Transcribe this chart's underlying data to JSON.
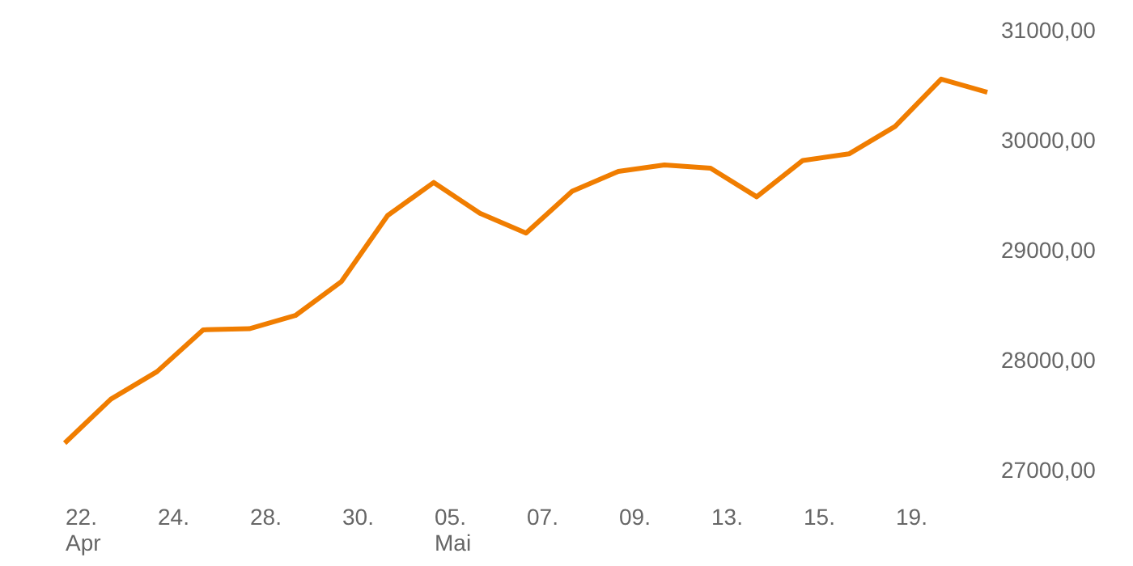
{
  "chart_data": {
    "type": "line",
    "categories": [
      "22.\nApr",
      null,
      "24.",
      null,
      "28.",
      null,
      "30.",
      null,
      "05.\nMai",
      null,
      "07.",
      null,
      "09.",
      null,
      "13.",
      null,
      "15.",
      null,
      "19.",
      null,
      null
    ],
    "series": [
      {
        "color": "#f07d00",
        "values": [
          27250,
          27650,
          27900,
          28280,
          28290,
          28410,
          28720,
          29320,
          29620,
          29340,
          29160,
          29540,
          29720,
          29780,
          29750,
          29490,
          29820,
          29880,
          30130,
          30560,
          30440
        ]
      }
    ],
    "ylim": [
      27000,
      31000
    ],
    "yticks": [
      {
        "value": 27000,
        "label": "27000,00"
      },
      {
        "value": 28000,
        "label": "28000,00"
      },
      {
        "value": 29000,
        "label": "29000,00"
      },
      {
        "value": 30000,
        "label": "30000,00"
      },
      {
        "value": 31000,
        "label": "31000,00"
      }
    ],
    "grid": false,
    "marker": "none",
    "line_style": "solid"
  }
}
